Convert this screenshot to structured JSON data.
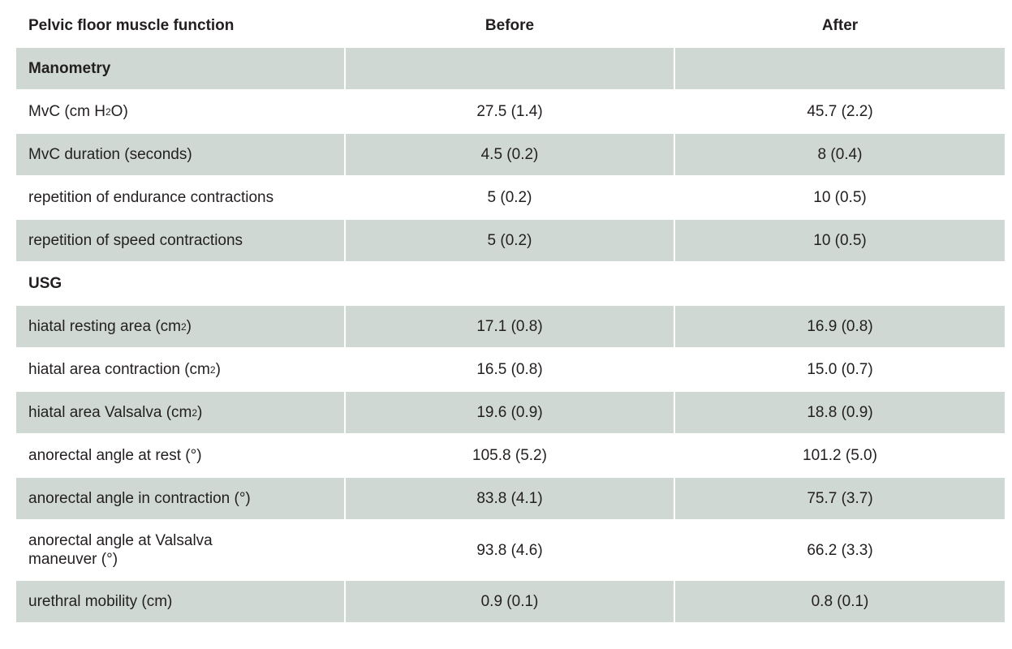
{
  "header": {
    "col1": "Pelvic floor muscle function",
    "col2": "Before",
    "col3": "After"
  },
  "sections": {
    "manometry": "Manometry",
    "usg": "USG"
  },
  "rows": [
    {
      "label_pre": "MvC (cm H",
      "label_sub": "2",
      "label_post": "O)",
      "before": "27.5 (1.4)",
      "after": "45.7 (2.2)"
    },
    {
      "label": "MvC duration (seconds)",
      "before": "4.5 (0.2)",
      "after": "8 (0.4)"
    },
    {
      "label": "repetition of endurance contractions",
      "before": "5 (0.2)",
      "after": "10 (0.5)"
    },
    {
      "label": "repetition of speed contractions",
      "before": "5 (0.2)",
      "after": "10 (0.5)"
    },
    {
      "label_pre": "hiatal resting area (cm",
      "label_sup": "2",
      "label_post": ")",
      "before": "17.1 (0.8)",
      "after": "16.9 (0.8)"
    },
    {
      "label_pre": "hiatal area contraction (cm",
      "label_sup": "2",
      "label_post": ")",
      "before": "16.5 (0.8)",
      "after": "15.0 (0.7)"
    },
    {
      "label_pre": "hiatal area Valsalva (cm",
      "label_sup": "2",
      "label_post": ")",
      "before": "19.6 (0.9)",
      "after": "18.8 (0.9)"
    },
    {
      "label": "anorectal angle at rest (°)",
      "before": "105.8 (5.2)",
      "after": "101.2 (5.0)"
    },
    {
      "label": "anorectal angle in contraction (°)",
      "before": "83.8 (4.1)",
      "after": "75.7 (3.7)"
    },
    {
      "label": "anorectal angle at Valsalva maneuver (°)",
      "before": "93.8 (4.6)",
      "after": "66.2 (3.3)"
    },
    {
      "label": "urethral mobility (cm)",
      "before": "0.9 (0.1)",
      "after": "0.8 (0.1)"
    }
  ],
  "colors": {
    "shade": "#cfd8d3",
    "text": "#231f20"
  }
}
